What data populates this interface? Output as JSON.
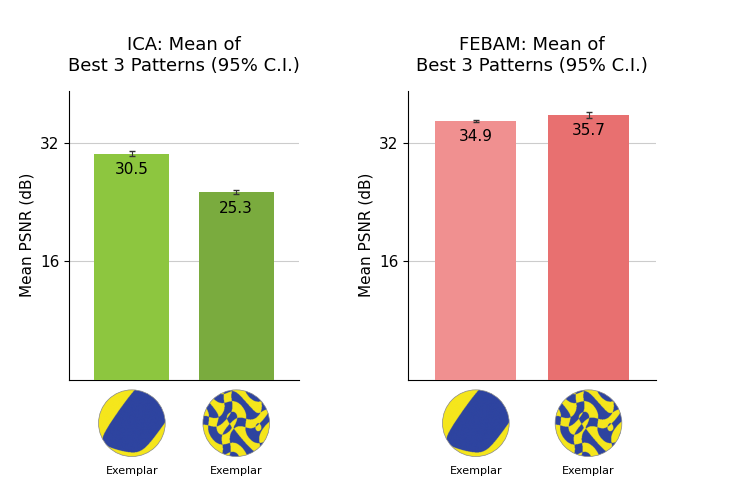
{
  "chart_data": [
    {
      "type": "bar",
      "title": "ICA: Mean of\nBest 3 Patterns (95% C.I.)",
      "y_label": "Mean PSNR (dB)",
      "categories": [
        "Exemplar",
        "Exemplar"
      ],
      "values": [
        30.5,
        25.3
      ],
      "errors": [
        0.3,
        0.3
      ],
      "colors": [
        "#8dc63f",
        "#7aab3e"
      ],
      "ylim": [
        0,
        39
      ],
      "yticks": [
        16,
        32
      ],
      "grid": true,
      "data_labels": true
    },
    {
      "type": "bar",
      "title": "FEBAM: Mean of\nBest 3 Patterns (95% C.I.)",
      "y_label": "Mean PSNR (dB)",
      "categories": [
        "Exemplar",
        "Exemplar"
      ],
      "values": [
        34.9,
        35.7
      ],
      "errors": [
        0.1,
        0.4
      ],
      "colors": [
        "#f09090",
        "#e87070"
      ],
      "ylim": [
        0,
        39
      ],
      "yticks": [
        16,
        32
      ],
      "grid": true,
      "data_labels": true
    }
  ]
}
